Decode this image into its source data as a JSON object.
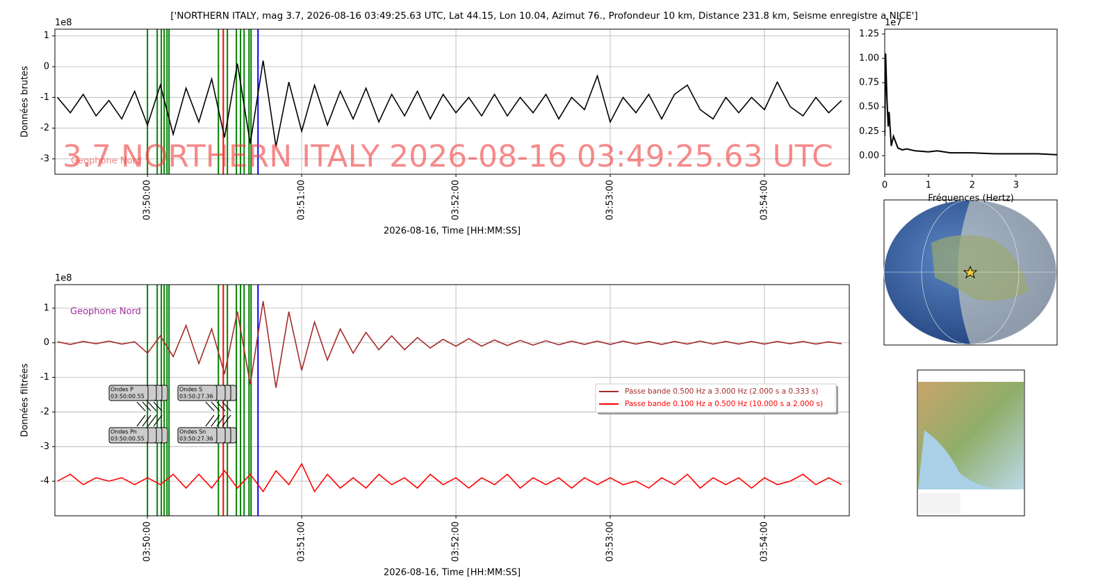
{
  "figure": {
    "title": "['NORTHERN ITALY, mag 3.7, 2026-08-16 03:49:25.63 UTC, Lat 44.15, Lon 10.04, Azimut 76., Profondeur 10 km, Distance 231.8 km, Seisme enregistre a NICE']",
    "watermark": "3.7 NORTHERN ITALY 2026-08-16 03:49:25.63 UTC"
  },
  "chart_data": [
    {
      "type": "line",
      "ylabel": "Données brutes",
      "xlabel": "2026-08-16, Time [HH:MM:SS]",
      "offset_text": "1e8",
      "station_label": "Geophone Nord",
      "xlim": [
        "03:49:24",
        "03:54:33"
      ],
      "xticks": [
        "03:50:00",
        "03:51:00",
        "03:52:00",
        "03:53:00",
        "03:54:00"
      ],
      "ylim": [
        -3.5,
        1.22
      ],
      "yticks": [
        -3,
        -2,
        -1,
        0,
        1
      ],
      "grid": true,
      "x": [
        "03:49:25",
        "03:49:30",
        "03:49:35",
        "03:49:40",
        "03:49:45",
        "03:49:50",
        "03:49:55",
        "03:50:00",
        "03:50:05",
        "03:50:10",
        "03:50:15",
        "03:50:20",
        "03:50:25",
        "03:50:30",
        "03:50:35",
        "03:50:40",
        "03:50:45",
        "03:50:50",
        "03:50:55",
        "03:51:00",
        "03:51:05",
        "03:51:10",
        "03:51:15",
        "03:51:20",
        "03:51:25",
        "03:51:30",
        "03:51:35",
        "03:51:40",
        "03:51:45",
        "03:51:50",
        "03:51:55",
        "03:52:00",
        "03:52:05",
        "03:52:10",
        "03:52:15",
        "03:52:20",
        "03:52:25",
        "03:52:30",
        "03:52:35",
        "03:52:40",
        "03:52:45",
        "03:52:50",
        "03:52:55",
        "03:53:00",
        "03:53:05",
        "03:53:10",
        "03:53:15",
        "03:53:20",
        "03:53:25",
        "03:53:30",
        "03:53:35",
        "03:53:40",
        "03:53:45",
        "03:53:50",
        "03:53:55",
        "03:54:00",
        "03:54:05",
        "03:54:10",
        "03:54:15",
        "03:54:20",
        "03:54:25",
        "03:54:30"
      ],
      "series": [
        {
          "color": "#000000",
          "values": [
            -1.0,
            -1.5,
            -0.9,
            -1.6,
            -1.1,
            -1.7,
            -0.8,
            -1.9,
            -0.6,
            -2.2,
            -0.7,
            -1.8,
            -0.4,
            -2.3,
            0.1,
            -2.5,
            0.2,
            -2.6,
            -0.5,
            -2.1,
            -0.6,
            -1.9,
            -0.8,
            -1.7,
            -0.7,
            -1.8,
            -0.9,
            -1.6,
            -0.8,
            -1.7,
            -0.9,
            -1.5,
            -1.0,
            -1.6,
            -0.9,
            -1.6,
            -1.0,
            -1.5,
            -0.9,
            -1.7,
            -1.0,
            -1.4,
            -0.3,
            -1.8,
            -1.0,
            -1.5,
            -0.9,
            -1.7,
            -0.9,
            -0.6,
            -1.4,
            -1.7,
            -1.0,
            -1.5,
            -1.0,
            -1.4,
            -0.5,
            -1.3,
            -1.6,
            -1.0,
            -1.5,
            -1.1
          ]
        }
      ],
      "vlines": [
        {
          "x": "03:50:00.0",
          "color": "green"
        },
        {
          "x": "03:50:03.8",
          "color": "green"
        },
        {
          "x": "03:50:05.4",
          "color": "green"
        },
        {
          "x": "03:50:06.5",
          "color": "green"
        },
        {
          "x": "03:50:07.6",
          "color": "green"
        },
        {
          "x": "03:50:08.4",
          "color": "green"
        },
        {
          "x": "03:50:27.6",
          "color": "green"
        },
        {
          "x": "03:50:29.5",
          "color": "red"
        },
        {
          "x": "03:50:31.1",
          "color": "green"
        },
        {
          "x": "03:50:34.6",
          "color": "green"
        },
        {
          "x": "03:50:36.2",
          "color": "green"
        },
        {
          "x": "03:50:37.6",
          "color": "green"
        },
        {
          "x": "03:50:39.5",
          "color": "green"
        },
        {
          "x": "03:50:40.3",
          "color": "green"
        },
        {
          "x": "03:50:43.0",
          "color": "blue"
        }
      ]
    },
    {
      "type": "line",
      "ylabel": "Données filtrées",
      "xlabel": "2026-08-16, Time [HH:MM:SS]",
      "offset_text": "1e8",
      "station_label": "Geophone Nord",
      "legend": "center right",
      "xlim": [
        "03:49:24",
        "03:54:33"
      ],
      "xticks": [
        "03:50:00",
        "03:51:00",
        "03:52:00",
        "03:53:00",
        "03:54:00"
      ],
      "ylim": [
        -5,
        1.68
      ],
      "yticks": [
        -4,
        -3,
        -2,
        -1,
        0,
        1
      ],
      "grid": true,
      "x": [
        "03:49:25",
        "03:49:30",
        "03:49:35",
        "03:49:40",
        "03:49:45",
        "03:49:50",
        "03:49:55",
        "03:50:00",
        "03:50:05",
        "03:50:10",
        "03:50:15",
        "03:50:20",
        "03:50:25",
        "03:50:30",
        "03:50:35",
        "03:50:40",
        "03:50:45",
        "03:50:50",
        "03:50:55",
        "03:51:00",
        "03:51:05",
        "03:51:10",
        "03:51:15",
        "03:51:20",
        "03:51:25",
        "03:51:30",
        "03:51:35",
        "03:51:40",
        "03:51:45",
        "03:51:50",
        "03:51:55",
        "03:52:00",
        "03:52:05",
        "03:52:10",
        "03:52:15",
        "03:52:20",
        "03:52:25",
        "03:52:30",
        "03:52:35",
        "03:52:40",
        "03:52:45",
        "03:52:50",
        "03:52:55",
        "03:53:00",
        "03:53:05",
        "03:53:10",
        "03:53:15",
        "03:53:20",
        "03:53:25",
        "03:53:30",
        "03:53:35",
        "03:53:40",
        "03:53:45",
        "03:53:50",
        "03:53:55",
        "03:54:00",
        "03:54:05",
        "03:54:10",
        "03:54:15",
        "03:54:20",
        "03:54:25",
        "03:54:30"
      ],
      "series": [
        {
          "name": "Passe bande 0.500 Hz a 3.000 Hz (2.000 s a 0.333 s)",
          "color": "#a52a2a",
          "values": [
            0.03,
            -0.05,
            0.04,
            -0.03,
            0.05,
            -0.04,
            0.03,
            -0.3,
            0.2,
            -0.4,
            0.5,
            -0.6,
            0.4,
            -0.9,
            0.9,
            -1.2,
            1.2,
            -1.3,
            0.9,
            -0.8,
            0.6,
            -0.5,
            0.4,
            -0.3,
            0.3,
            -0.2,
            0.2,
            -0.2,
            0.15,
            -0.15,
            0.1,
            -0.1,
            0.12,
            -0.1,
            0.08,
            -0.08,
            0.07,
            -0.07,
            0.06,
            -0.06,
            0.05,
            -0.05,
            0.05,
            -0.05,
            0.05,
            -0.04,
            0.04,
            -0.05,
            0.04,
            -0.04,
            0.05,
            -0.04,
            0.04,
            -0.04,
            0.04,
            -0.04,
            0.04,
            -0.03,
            0.04,
            -0.04,
            0.03,
            -0.03
          ]
        },
        {
          "name": "Passe bande 0.100 Hz a 0.500 Hz (10.000 s a 2.000 s)",
          "color": "#ff0000",
          "values": [
            -4.0,
            -3.8,
            -4.1,
            -3.9,
            -4.0,
            -3.9,
            -4.1,
            -3.9,
            -4.1,
            -3.8,
            -4.2,
            -3.8,
            -4.2,
            -3.7,
            -4.2,
            -3.8,
            -4.3,
            -3.7,
            -4.1,
            -3.5,
            -4.3,
            -3.8,
            -4.2,
            -3.9,
            -4.2,
            -3.8,
            -4.1,
            -3.9,
            -4.2,
            -3.8,
            -4.1,
            -3.9,
            -4.2,
            -3.9,
            -4.1,
            -3.8,
            -4.2,
            -3.9,
            -4.1,
            -3.9,
            -4.2,
            -3.9,
            -4.1,
            -3.9,
            -4.1,
            -4.0,
            -4.2,
            -3.9,
            -4.1,
            -3.8,
            -4.2,
            -3.9,
            -4.1,
            -3.9,
            -4.2,
            -3.9,
            -4.1,
            -4.0,
            -3.8,
            -4.1,
            -3.9,
            -4.1
          ]
        }
      ],
      "vlines": [
        {
          "x": "03:50:00.0",
          "color": "green"
        },
        {
          "x": "03:50:03.8",
          "color": "green"
        },
        {
          "x": "03:50:05.4",
          "color": "green"
        },
        {
          "x": "03:50:06.5",
          "color": "green"
        },
        {
          "x": "03:50:07.6",
          "color": "green"
        },
        {
          "x": "03:50:08.4",
          "color": "green"
        },
        {
          "x": "03:50:27.6",
          "color": "green"
        },
        {
          "x": "03:50:29.5",
          "color": "red"
        },
        {
          "x": "03:50:31.1",
          "color": "green"
        },
        {
          "x": "03:50:34.6",
          "color": "green"
        },
        {
          "x": "03:50:36.2",
          "color": "green"
        },
        {
          "x": "03:50:37.6",
          "color": "green"
        },
        {
          "x": "03:50:39.5",
          "color": "green"
        },
        {
          "x": "03:50:40.3",
          "color": "green"
        },
        {
          "x": "03:50:43.0",
          "color": "blue"
        }
      ],
      "annotations": [
        {
          "label": "Ondes P",
          "time": "03:50:00.55"
        },
        {
          "label": "Ondes S",
          "time": "03:50:27.36"
        },
        {
          "label": "Ondes Pn",
          "time": "03:50:00.55"
        },
        {
          "label": "Ondes Sn",
          "time": "03:50:27.36"
        }
      ]
    },
    {
      "type": "spectrum",
      "xlabel": "Fréquences (Hertz)",
      "offset_text": "1e7",
      "xlim": [
        0,
        3.94
      ],
      "xticks": [
        0,
        1,
        2,
        3
      ],
      "ylim": [
        -0.19,
        1.3
      ],
      "yticks": [
        {
          "value": 0,
          "label": "0.00"
        },
        {
          "value": 0.25,
          "label": "0.25"
        },
        {
          "value": 0.5,
          "label": "0.50"
        },
        {
          "value": 0.75,
          "label": "0.75"
        },
        {
          "value": 1,
          "label": "1.00"
        },
        {
          "value": 1.25,
          "label": "1.25"
        }
      ],
      "x": [
        0,
        0.02,
        0.05,
        0.08,
        0.1,
        0.15,
        0.2,
        0.3,
        0.4,
        0.5,
        0.7,
        1.0,
        1.2,
        1.5,
        2.0,
        2.5,
        3.0,
        3.5,
        3.94
      ],
      "series": [
        {
          "color": "#000000",
          "values": [
            0.2,
            1.05,
            0.6,
            0.3,
            0.45,
            0.1,
            0.2,
            0.08,
            0.06,
            0.07,
            0.05,
            0.04,
            0.05,
            0.03,
            0.03,
            0.02,
            0.02,
            0.02,
            0.01
          ]
        }
      ]
    }
  ]
}
